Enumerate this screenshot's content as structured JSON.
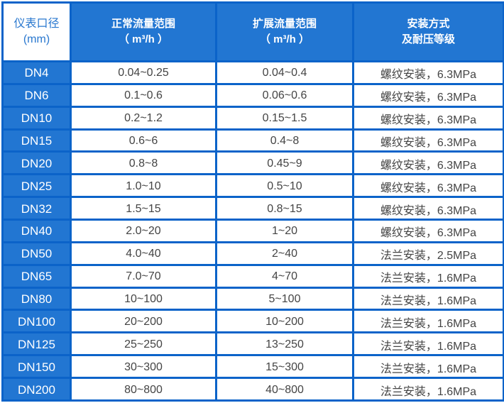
{
  "headers": [
    {
      "line1": "仪表口径",
      "line2": "(mm)"
    },
    {
      "line1": "正常流量范围",
      "line2": "（ m³/h ）"
    },
    {
      "line1": "扩展流量范围",
      "line2": "（ m³/h ）"
    },
    {
      "line1": "安装方式",
      "line2": "及耐压等级"
    }
  ],
  "rows": [
    [
      "DN4",
      "0.04~0.25",
      "0.04~0.4",
      "螺纹安装，6.3MPa"
    ],
    [
      "DN6",
      "0.1~0.6",
      "0.06~0.6",
      "螺纹安装，6.3MPa"
    ],
    [
      "DN10",
      "0.2~1.2",
      "0.15~1.5",
      "螺纹安装，6.3MPa"
    ],
    [
      "DN15",
      "0.6~6",
      "0.4~8",
      "螺纹安装，6.3MPa"
    ],
    [
      "DN20",
      "0.8~8",
      "0.45~9",
      "螺纹安装，6.3MPa"
    ],
    [
      "DN25",
      "1.0~10",
      "0.5~10",
      "螺纹安装，6.3MPa"
    ],
    [
      "DN32",
      "1.5~15",
      "0.8~15",
      "螺纹安装，6.3MPa"
    ],
    [
      "DN40",
      "2.0~20",
      "1~20",
      "螺纹安装，6.3MPa"
    ],
    [
      "DN50",
      "4.0~40",
      "2~40",
      "法兰安装，2.5MPa"
    ],
    [
      "DN65",
      "7.0~70",
      "4~70",
      "法兰安装，1.6MPa"
    ],
    [
      "DN80",
      "10~100",
      "5~100",
      "法兰安装，1.6MPa"
    ],
    [
      "DN100",
      "20~200",
      "10~200",
      "法兰安装，1.6MPa"
    ],
    [
      "DN125",
      "25~250",
      "13~250",
      "法兰安装，1.6MPa"
    ],
    [
      "DN150",
      "30~300",
      "15~300",
      "法兰安装，1.6MPa"
    ],
    [
      "DN200",
      "80~800",
      "40~800",
      "法兰安装，1.6MPa"
    ]
  ],
  "colors": {
    "header_blue": "#2276d2",
    "border_blue": "#0b63c9",
    "text": "#444444"
  }
}
